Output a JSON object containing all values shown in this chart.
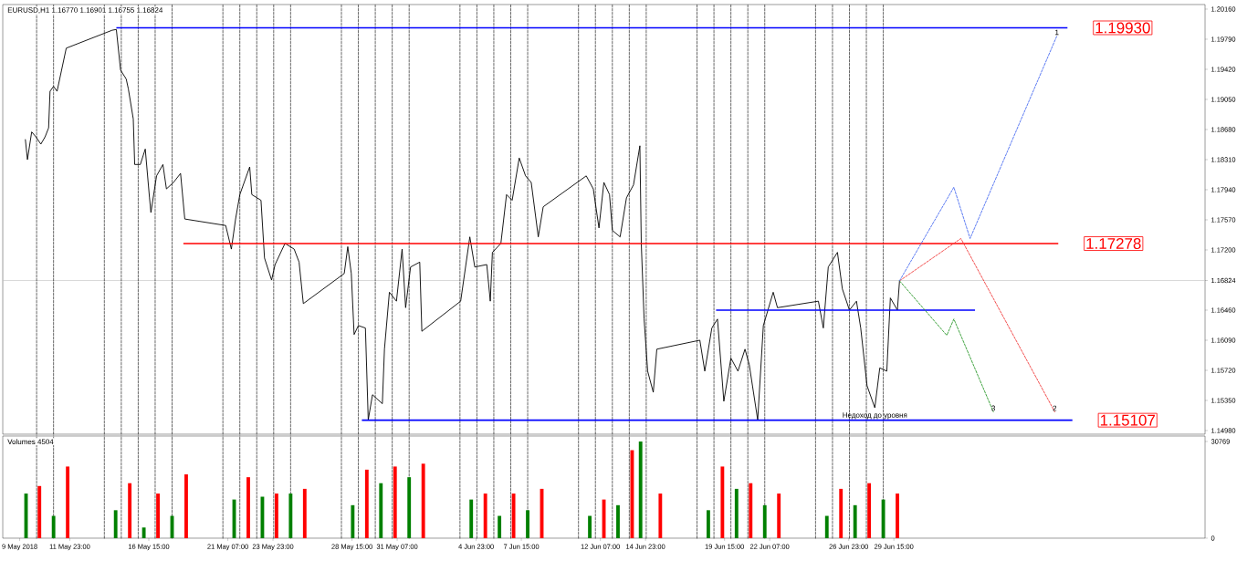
{
  "chart_data": [
    {
      "type": "line",
      "title": "EURUSD,H1  1.16770 1.16901 1.16755 1.16824",
      "xlim": [
        "2018-05-08T00:00",
        "2018-07-18T00:00"
      ],
      "ylim": [
        1.14935,
        1.20216
      ],
      "tick_labels": "y",
      "yticks": [
        {
          "value": 1.2016,
          "label": "1.20160"
        },
        {
          "value": 1.1979,
          "label": "1.19790"
        },
        {
          "value": 1.1942,
          "label": "1.19420"
        },
        {
          "value": 1.1905,
          "label": "1.19050"
        },
        {
          "value": 1.1868,
          "label": "1.18680"
        },
        {
          "value": 1.1831,
          "label": "1.18310"
        },
        {
          "value": 1.1794,
          "label": "1.17940"
        },
        {
          "value": 1.1757,
          "label": "1.17570"
        },
        {
          "value": 1.172,
          "label": "1.17200"
        },
        {
          "value": 1.16824,
          "label": "1.16824"
        },
        {
          "value": 1.1646,
          "label": "1.16460"
        },
        {
          "value": 1.1609,
          "label": "1.16090"
        },
        {
          "value": 1.1572,
          "label": "1.15720"
        },
        {
          "value": 1.1535,
          "label": "1.15350"
        },
        {
          "value": 1.1498,
          "label": "1.14980"
        }
      ],
      "series": [
        {
          "color": "#000000",
          "x": [
            "2018-05-09T08:00",
            "2018-05-09T11:00",
            "2018-05-09T17:00",
            "2018-05-09T23:00",
            "2018-05-10T06:00",
            "2018-05-10T12:00",
            "2018-05-10T17:00",
            "2018-05-10T19:00",
            "2018-05-11T00:00",
            "2018-05-11T05:00",
            "2018-05-11T18:00",
            "2018-05-14T11:00",
            "2018-05-14T17:00",
            "2018-05-14T23:00",
            "2018-05-15T07:00",
            "2018-05-15T10:00",
            "2018-05-15T17:00",
            "2018-05-15T19:00",
            "2018-05-16T03:00",
            "2018-05-16T10:00",
            "2018-05-16T16:00",
            "2018-05-16T18:00",
            "2018-05-17T02:00",
            "2018-05-17T11:00",
            "2018-05-17T16:00",
            "2018-05-18T02:00",
            "2018-05-18T12:00",
            "2018-05-18T18:00",
            "2018-05-21T04:00",
            "2018-05-21T12:00",
            "2018-05-21T18:00",
            "2018-05-22T00:00",
            "2018-05-22T14:00",
            "2018-05-22T17:00",
            "2018-05-23T06:00",
            "2018-05-23T11:00",
            "2018-05-23T21:00",
            "2018-05-24T02:00",
            "2018-05-24T16:00",
            "2018-05-25T05:00",
            "2018-05-25T12:00",
            "2018-05-25T18:00",
            "2018-05-28T04:00",
            "2018-05-28T09:00",
            "2018-05-28T14:00",
            "2018-05-28T18:00",
            "2018-05-29T00:00",
            "2018-05-29T10:00",
            "2018-05-29T14:00",
            "2018-05-29T20:00",
            "2018-05-30T10:00",
            "2018-05-30T13:00",
            "2018-05-30T20:00",
            "2018-05-31T06:00",
            "2018-05-31T14:00",
            "2018-05-31T19:00",
            "2018-06-01T02:00",
            "2018-06-01T15:00",
            "2018-06-01T18:00",
            "2018-06-04T01:00",
            "2018-06-04T14:00",
            "2018-06-04T21:00",
            "2018-06-05T14:00",
            "2018-06-05T19:00",
            "2018-06-05T22:00",
            "2018-06-06T10:00",
            "2018-06-06T18:00",
            "2018-06-07T02:00",
            "2018-06-07T12:00",
            "2018-06-07T21:00",
            "2018-06-08T05:00",
            "2018-06-08T15:00",
            "2018-06-08T22:00",
            "2018-06-11T11:00",
            "2018-06-11T21:00",
            "2018-06-12T05:00",
            "2018-06-12T12:00",
            "2018-06-12T20:00",
            "2018-06-13T00:00",
            "2018-06-13T11:00",
            "2018-06-13T20:00",
            "2018-06-14T06:00",
            "2018-06-14T15:00",
            "2018-06-14T17:00",
            "2018-06-14T21:00",
            "2018-06-15T02:00",
            "2018-06-15T10:00",
            "2018-06-15T15:00",
            "2018-06-18T04:00",
            "2018-06-18T11:00",
            "2018-06-18T21:00",
            "2018-06-19T05:00",
            "2018-06-19T14:00",
            "2018-06-20T00:00",
            "2018-06-20T10:00",
            "2018-06-20T20:00",
            "2018-06-21T02:00",
            "2018-06-21T14:00",
            "2018-06-21T22:00",
            "2018-06-22T12:00",
            "2018-06-22T18:00",
            "2018-06-25T04:00",
            "2018-06-25T11:00",
            "2018-06-25T18:00",
            "2018-06-26T07:00",
            "2018-06-26T14:00",
            "2018-06-27T00:00",
            "2018-06-27T10:00",
            "2018-06-27T16:00",
            "2018-06-28T01:00",
            "2018-06-28T12:00",
            "2018-06-28T19:00",
            "2018-06-29T05:00",
            "2018-06-29T10:00",
            "2018-06-29T20:00",
            "2018-06-29T23:00"
          ],
          "values": [
            1.1856,
            1.1831,
            1.1865,
            1.1859,
            1.185,
            1.1859,
            1.187,
            1.1915,
            1.1921,
            1.1915,
            1.1968,
            1.199,
            1.1991,
            1.1941,
            1.193,
            1.1918,
            1.1881,
            1.1825,
            1.1825,
            1.1844,
            1.1784,
            1.1766,
            1.1811,
            1.1825,
            1.1795,
            1.1803,
            1.1814,
            1.1758,
            1.175,
            1.1721,
            1.1758,
            1.1788,
            1.1822,
            1.1788,
            1.1781,
            1.171,
            1.1683,
            1.1702,
            1.1728,
            1.1721,
            1.1705,
            1.1654,
            1.1691,
            1.1724,
            1.1691,
            1.1616,
            1.1627,
            1.1624,
            1.1511,
            1.1542,
            1.1531,
            1.1598,
            1.1668,
            1.1657,
            1.1721,
            1.1649,
            1.1699,
            1.1705,
            1.162,
            1.1657,
            1.1736,
            1.1699,
            1.1702,
            1.1657,
            1.1717,
            1.1728,
            1.1788,
            1.1781,
            1.1833,
            1.1811,
            1.1803,
            1.1736,
            1.1773,
            1.1811,
            1.1795,
            1.1747,
            1.1803,
            1.1788,
            1.1744,
            1.1736,
            1.1784,
            1.18,
            1.1848,
            1.1728,
            1.1635,
            1.1571,
            1.1545,
            1.1598,
            1.1609,
            1.1571,
            1.1624,
            1.1635,
            1.1534,
            1.1587,
            1.1571,
            1.1598,
            1.1579,
            1.1511,
            1.1627,
            1.1668,
            1.1649,
            1.1657,
            1.1624,
            1.1699,
            1.1717,
            1.1672,
            1.1646,
            1.1657,
            1.1624,
            1.1553,
            1.1526,
            1.1575,
            1.1571,
            1.1661,
            1.1646,
            1.1682
          ]
        },
        {
          "name": "1.19930",
          "color": "#0000ff",
          "x": [
            "2018-05-14T17:00",
            "2018-07-09T21:00"
          ],
          "values": [
            1.1993,
            1.1993
          ]
        },
        {
          "name": "1.17278",
          "color": "#ff0000",
          "x": [
            "2018-05-18T16:00",
            "2018-07-09T08:00"
          ],
          "values": [
            1.17278,
            1.17278
          ]
        },
        {
          "name": "1.15107",
          "color": "#0000ff",
          "x": [
            "2018-05-29T05:00",
            "2018-07-10T04:00"
          ],
          "values": [
            1.15107,
            1.15107
          ]
        },
        {
          "color": "#0000ff",
          "x": [
            "2018-06-19T03:00",
            "2018-07-04T10:00"
          ],
          "values": [
            1.1646,
            1.1646
          ]
        },
        {
          "color": "#4a6cf0",
          "line_style": "dashed",
          "x": [
            "2018-06-29T23:00",
            "2018-07-03T04:00",
            "2018-07-04T03:00",
            "2018-07-09T06:00"
          ],
          "values": [
            1.1682,
            1.1797,
            1.1734,
            1.1983
          ]
        },
        {
          "color": "#f03c3c",
          "line_style": "dashed",
          "x": [
            "2018-06-29T23:00",
            "2018-07-03T14:00",
            "2018-07-09T03:00"
          ],
          "values": [
            1.1682,
            1.1734,
            1.1521
          ]
        },
        {
          "color": "#2e9a2e",
          "line_style": "dashed",
          "x": [
            "2018-06-29T23:00",
            "2018-07-02T18:00",
            "2018-07-03T04:00",
            "2018-07-05T12:00"
          ],
          "values": [
            1.1682,
            1.1615,
            1.1635,
            1.1521
          ]
        }
      ],
      "annotations": [
        {
          "text": "1",
          "x": "2018-07-09T06:00",
          "y": 1.1983
        },
        {
          "text": "2",
          "x": "2018-07-09T03:00",
          "y": 1.1521
        },
        {
          "text": "3",
          "x": "2018-07-05T12:00",
          "y": 1.1521
        },
        {
          "text": "Недоход до уровня",
          "x": "2018-06-28T12:00",
          "y": 1.15107
        }
      ],
      "ref_lines": [
        {
          "axis": "y",
          "value": 1.16824,
          "color": "#c0c0c0"
        },
        {
          "axis": "x",
          "value": "2018-05-10T00:00",
          "color": "#000000",
          "line_style": "dashed"
        },
        {
          "axis": "x",
          "value": "2018-05-11T00:00",
          "color": "#000000",
          "line_style": "dashed"
        },
        {
          "axis": "x",
          "value": "2018-05-14T00:00",
          "color": "#000000",
          "line_style": "dashed"
        },
        {
          "axis": "x",
          "value": "2018-05-15T00:00",
          "color": "#000000",
          "line_style": "dashed"
        },
        {
          "axis": "x",
          "value": "2018-05-16T00:00",
          "color": "#000000",
          "line_style": "dashed"
        },
        {
          "axis": "x",
          "value": "2018-05-17T00:00",
          "color": "#000000",
          "line_style": "dashed"
        },
        {
          "axis": "x",
          "value": "2018-05-18T00:00",
          "color": "#000000",
          "line_style": "dashed"
        },
        {
          "axis": "x",
          "value": "2018-05-21T00:00",
          "color": "#000000",
          "line_style": "dashed"
        },
        {
          "axis": "x",
          "value": "2018-05-22T00:00",
          "color": "#000000",
          "line_style": "dashed"
        },
        {
          "axis": "x",
          "value": "2018-05-23T00:00",
          "color": "#000000",
          "line_style": "dashed"
        },
        {
          "axis": "x",
          "value": "2018-05-24T00:00",
          "color": "#000000",
          "line_style": "dashed"
        },
        {
          "axis": "x",
          "value": "2018-05-25T00:00",
          "color": "#000000",
          "line_style": "dashed"
        },
        {
          "axis": "x",
          "value": "2018-05-28T00:00",
          "color": "#000000",
          "line_style": "dashed"
        },
        {
          "axis": "x",
          "value": "2018-05-29T00:00",
          "color": "#000000",
          "line_style": "dashed"
        },
        {
          "axis": "x",
          "value": "2018-05-30T00:00",
          "color": "#000000",
          "line_style": "dashed"
        },
        {
          "axis": "x",
          "value": "2018-05-31T00:00",
          "color": "#000000",
          "line_style": "dashed"
        },
        {
          "axis": "x",
          "value": "2018-06-01T00:00",
          "color": "#000000",
          "line_style": "dashed"
        },
        {
          "axis": "x",
          "value": "2018-06-04T00:00",
          "color": "#000000",
          "line_style": "dashed"
        },
        {
          "axis": "x",
          "value": "2018-06-05T00:00",
          "color": "#000000",
          "line_style": "dashed"
        },
        {
          "axis": "x",
          "value": "2018-06-06T00:00",
          "color": "#000000",
          "line_style": "dashed"
        },
        {
          "axis": "x",
          "value": "2018-06-07T00:00",
          "color": "#000000",
          "line_style": "dashed"
        },
        {
          "axis": "x",
          "value": "2018-06-08T00:00",
          "color": "#000000",
          "line_style": "dashed"
        },
        {
          "axis": "x",
          "value": "2018-06-11T00:00",
          "color": "#000000",
          "line_style": "dashed"
        },
        {
          "axis": "x",
          "value": "2018-06-12T00:00",
          "color": "#000000",
          "line_style": "dashed"
        },
        {
          "axis": "x",
          "value": "2018-06-13T00:00",
          "color": "#000000",
          "line_style": "dashed"
        },
        {
          "axis": "x",
          "value": "2018-06-14T00:00",
          "color": "#000000",
          "line_style": "dashed"
        },
        {
          "axis": "x",
          "value": "2018-06-15T00:00",
          "color": "#000000",
          "line_style": "dashed"
        },
        {
          "axis": "x",
          "value": "2018-06-18T00:00",
          "color": "#000000",
          "line_style": "dashed"
        },
        {
          "axis": "x",
          "value": "2018-06-19T00:00",
          "color": "#000000",
          "line_style": "dashed"
        },
        {
          "axis": "x",
          "value": "2018-06-20T00:00",
          "color": "#000000",
          "line_style": "dashed"
        },
        {
          "axis": "x",
          "value": "2018-06-21T00:00",
          "color": "#000000",
          "line_style": "dashed"
        },
        {
          "axis": "x",
          "value": "2018-06-22T00:00",
          "color": "#000000",
          "line_style": "dashed"
        },
        {
          "axis": "x",
          "value": "2018-06-25T00:00",
          "color": "#000000",
          "line_style": "dashed"
        },
        {
          "axis": "x",
          "value": "2018-06-26T00:00",
          "color": "#000000",
          "line_style": "dashed"
        },
        {
          "axis": "x",
          "value": "2018-06-27T00:00",
          "color": "#000000",
          "line_style": "dashed"
        },
        {
          "axis": "x",
          "value": "2018-06-28T00:00",
          "color": "#000000",
          "line_style": "dashed"
        },
        {
          "axis": "x",
          "value": "2018-06-29T00:00",
          "color": "#000000",
          "line_style": "dashed"
        }
      ]
    },
    {
      "type": "bar",
      "title": "Volumes 4504",
      "xlim": [
        "2018-05-08T00:00",
        "2018-07-18T00:00"
      ],
      "ylim": [
        0,
        32510
      ],
      "xticks": [
        {
          "value": "2018-05-09T00:00",
          "label": "9 May 2018"
        },
        {
          "value": "2018-05-11T23:00",
          "label": "11 May 23:00"
        },
        {
          "value": "2018-05-16T15:00",
          "label": "16 May 15:00"
        },
        {
          "value": "2018-05-21T07:00",
          "label": "21 May 07:00"
        },
        {
          "value": "2018-05-23T23:00",
          "label": "23 May 23:00"
        },
        {
          "value": "2018-05-28T15:00",
          "label": "28 May 15:00"
        },
        {
          "value": "2018-05-31T07:00",
          "label": "31 May 07:00"
        },
        {
          "value": "2018-06-04T23:00",
          "label": "4 Jun 23:00"
        },
        {
          "value": "2018-06-07T15:00",
          "label": "7 Jun 15:00"
        },
        {
          "value": "2018-06-12T07:00",
          "label": "12 Jun 07:00"
        },
        {
          "value": "2018-06-14T23:00",
          "label": "14 Jun 23:00"
        },
        {
          "value": "2018-06-19T15:00",
          "label": "19 Jun 15:00"
        },
        {
          "value": "2018-06-22T07:00",
          "label": "22 Jun 07:00"
        },
        {
          "value": "2018-06-26T23:00",
          "label": "26 Jun 23:00"
        },
        {
          "value": "2018-06-29T15:00",
          "label": "29 Jun 15:00"
        }
      ],
      "yticks": [
        0,
        30769
      ],
      "x": [
        "2018-05-09T09:00",
        "2018-05-10T04:00",
        "2018-05-11T00:00",
        "2018-05-11T20:00",
        "2018-05-14T16:00",
        "2018-05-15T12:00",
        "2018-05-16T08:00",
        "2018-05-17T04:00",
        "2018-05-18T00:00",
        "2018-05-18T20:00",
        "2018-05-21T16:00",
        "2018-05-22T12:00",
        "2018-05-23T08:00",
        "2018-05-24T04:00",
        "2018-05-25T00:00",
        "2018-05-25T20:00",
        "2018-05-28T16:00",
        "2018-05-29T12:00",
        "2018-05-30T08:00",
        "2018-05-31T04:00",
        "2018-06-01T00:00",
        "2018-06-01T20:00",
        "2018-06-04T16:00",
        "2018-06-05T12:00",
        "2018-06-06T08:00",
        "2018-06-07T04:00",
        "2018-06-08T00:00",
        "2018-06-08T20:00",
        "2018-06-11T16:00",
        "2018-06-12T12:00",
        "2018-06-13T08:00",
        "2018-06-14T04:00",
        "2018-06-14T16:00",
        "2018-06-15T20:00",
        "2018-06-18T16:00",
        "2018-06-19T12:00",
        "2018-06-20T08:00",
        "2018-06-21T04:00",
        "2018-06-22T00:00",
        "2018-06-22T20:00",
        "2018-06-25T16:00",
        "2018-06-26T12:00",
        "2018-06-27T08:00",
        "2018-06-28T04:00",
        "2018-06-29T00:00",
        "2018-06-29T20:00"
      ],
      "series": [
        {
          "colors": [
            "#008000",
            "#ff0000",
            "#008000",
            "#ff0000",
            "#008000",
            "#ff0000",
            "#008000",
            "#ff0000",
            "#008000",
            "#ff0000",
            "#008000",
            "#ff0000",
            "#008000",
            "#ff0000",
            "#008000",
            "#ff0000",
            "#008000",
            "#ff0000",
            "#008000",
            "#ff0000",
            "#008000",
            "#ff0000",
            "#008000",
            "#ff0000",
            "#008000",
            "#ff0000",
            "#008000",
            "#ff0000",
            "#008000",
            "#ff0000",
            "#008000",
            "#ff0000",
            "#008000",
            "#ff0000",
            "#008000",
            "#ff0000",
            "#008000",
            "#ff0000",
            "#008000",
            "#ff0000",
            "#008000",
            "#ff0000",
            "#008000",
            "#ff0000",
            "#008000",
            "#ff0000"
          ],
          "values": [
            14200,
            16600,
            7100,
            22800,
            8900,
            17500,
            3400,
            14200,
            7100,
            20300,
            12300,
            19400,
            13200,
            14200,
            14200,
            15700,
            10500,
            21800,
            17500,
            22800,
            19400,
            23700,
            12300,
            14200,
            7100,
            14200,
            8900,
            15700,
            7100,
            12300,
            10500,
            28000,
            30769,
            14200,
            8900,
            22800,
            15700,
            17500,
            10500,
            14200,
            7100,
            15700,
            10500,
            17500,
            12300,
            14200
          ]
        }
      ],
      "ref_lines": [
        {
          "axis": "x",
          "value": "2018-05-10T00:00",
          "color": "#000000",
          "line_style": "dashed"
        },
        {
          "axis": "x",
          "value": "2018-05-11T00:00",
          "color": "#000000",
          "line_style": "dashed"
        },
        {
          "axis": "x",
          "value": "2018-05-14T00:00",
          "color": "#000000",
          "line_style": "dashed"
        },
        {
          "axis": "x",
          "value": "2018-05-15T00:00",
          "color": "#000000",
          "line_style": "dashed"
        },
        {
          "axis": "x",
          "value": "2018-05-16T00:00",
          "color": "#000000",
          "line_style": "dashed"
        },
        {
          "axis": "x",
          "value": "2018-05-17T00:00",
          "color": "#000000",
          "line_style": "dashed"
        },
        {
          "axis": "x",
          "value": "2018-05-18T00:00",
          "color": "#000000",
          "line_style": "dashed"
        },
        {
          "axis": "x",
          "value": "2018-05-21T00:00",
          "color": "#000000",
          "line_style": "dashed"
        },
        {
          "axis": "x",
          "value": "2018-05-22T00:00",
          "color": "#000000",
          "line_style": "dashed"
        },
        {
          "axis": "x",
          "value": "2018-05-23T00:00",
          "color": "#000000",
          "line_style": "dashed"
        },
        {
          "axis": "x",
          "value": "2018-05-24T00:00",
          "color": "#000000",
          "line_style": "dashed"
        },
        {
          "axis": "x",
          "value": "2018-05-25T00:00",
          "color": "#000000",
          "line_style": "dashed"
        },
        {
          "axis": "x",
          "value": "2018-05-28T00:00",
          "color": "#000000",
          "line_style": "dashed"
        },
        {
          "axis": "x",
          "value": "2018-05-29T00:00",
          "color": "#000000",
          "line_style": "dashed"
        },
        {
          "axis": "x",
          "value": "2018-05-30T00:00",
          "color": "#000000",
          "line_style": "dashed"
        },
        {
          "axis": "x",
          "value": "2018-05-31T00:00",
          "color": "#000000",
          "line_style": "dashed"
        },
        {
          "axis": "x",
          "value": "2018-06-01T00:00",
          "color": "#000000",
          "line_style": "dashed"
        },
        {
          "axis": "x",
          "value": "2018-06-04T00:00",
          "color": "#000000",
          "line_style": "dashed"
        },
        {
          "axis": "x",
          "value": "2018-06-05T00:00",
          "color": "#000000",
          "line_style": "dashed"
        },
        {
          "axis": "x",
          "value": "2018-06-06T00:00",
          "color": "#000000",
          "line_style": "dashed"
        },
        {
          "axis": "x",
          "value": "2018-06-07T00:00",
          "color": "#000000",
          "line_style": "dashed"
        },
        {
          "axis": "x",
          "value": "2018-06-08T00:00",
          "color": "#000000",
          "line_style": "dashed"
        },
        {
          "axis": "x",
          "value": "2018-06-11T00:00",
          "color": "#000000",
          "line_style": "dashed"
        },
        {
          "axis": "x",
          "value": "2018-06-12T00:00",
          "color": "#000000",
          "line_style": "dashed"
        },
        {
          "axis": "x",
          "value": "2018-06-13T00:00",
          "color": "#000000",
          "line_style": "dashed"
        },
        {
          "axis": "x",
          "value": "2018-06-14T00:00",
          "color": "#000000",
          "line_style": "dashed"
        },
        {
          "axis": "x",
          "value": "2018-06-15T00:00",
          "color": "#000000",
          "line_style": "dashed"
        },
        {
          "axis": "x",
          "value": "2018-06-18T00:00",
          "color": "#000000",
          "line_style": "dashed"
        },
        {
          "axis": "x",
          "value": "2018-06-19T00:00",
          "color": "#000000",
          "line_style": "dashed"
        },
        {
          "axis": "x",
          "value": "2018-06-20T00:00",
          "color": "#000000",
          "line_style": "dashed"
        },
        {
          "axis": "x",
          "value": "2018-06-21T00:00",
          "color": "#000000",
          "line_style": "dashed"
        },
        {
          "axis": "x",
          "value": "2018-06-22T00:00",
          "color": "#000000",
          "line_style": "dashed"
        },
        {
          "axis": "x",
          "value": "2018-06-25T00:00",
          "color": "#000000",
          "line_style": "dashed"
        },
        {
          "axis": "x",
          "value": "2018-06-26T00:00",
          "color": "#000000",
          "line_style": "dashed"
        },
        {
          "axis": "x",
          "value": "2018-06-27T00:00",
          "color": "#000000",
          "line_style": "dashed"
        },
        {
          "axis": "x",
          "value": "2018-06-28T00:00",
          "color": "#000000",
          "line_style": "dashed"
        },
        {
          "axis": "x",
          "value": "2018-06-29T00:00",
          "color": "#000000",
          "line_style": "dashed"
        }
      ]
    }
  ]
}
